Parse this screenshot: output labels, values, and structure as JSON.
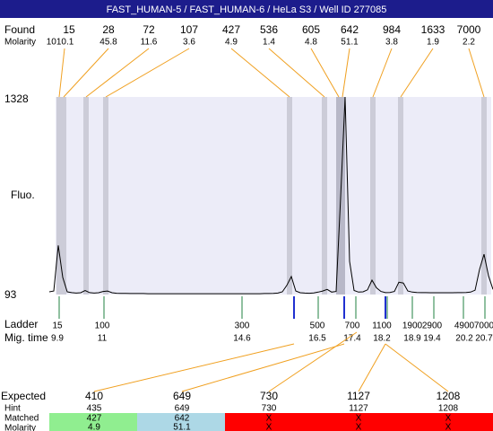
{
  "title": "FAST_HUMAN-5 / FAST_HUMAN-6 / HeLa S3 / Well ID 277085",
  "chart_data": {
    "type": "line",
    "y_label": "Fluo.",
    "ylim": [
      93,
      1328
    ],
    "yticks": [
      93,
      1328
    ],
    "color": "#000000",
    "values": [
      110,
      115,
      400,
      200,
      110,
      105,
      102,
      104,
      118,
      105,
      102,
      104,
      112,
      115,
      104,
      101,
      100,
      100,
      99,
      99,
      99,
      99,
      98,
      98,
      98,
      98,
      98,
      98,
      98,
      98,
      98,
      98,
      98,
      98,
      98,
      98,
      98,
      98,
      98,
      98,
      98,
      98,
      98,
      98,
      98,
      98,
      98,
      98,
      99,
      99,
      100,
      102,
      110,
      150,
      205,
      115,
      104,
      102,
      101,
      103,
      108,
      115,
      125,
      108,
      112,
      700,
      1328,
      300,
      118,
      108,
      110,
      122,
      183,
      135,
      112,
      105,
      106,
      112,
      170,
      165,
      115,
      108,
      106,
      105,
      105,
      104,
      104,
      104,
      104,
      104,
      104,
      105,
      105,
      106,
      108,
      120,
      250,
      345,
      210,
      125
    ]
  },
  "found": {
    "label": "Found",
    "molarity_label": "Molarity",
    "sizes": [
      15,
      28,
      72,
      107,
      427,
      536,
      605,
      642,
      984,
      1633,
      7000
    ],
    "molarity": [
      1010.1,
      45.8,
      11.6,
      3.6,
      4.9,
      1.4,
      4.8,
      51.1,
      3.8,
      1.9,
      2.2
    ]
  },
  "ladder": {
    "label": "Ladder",
    "time_label": "Mig. time",
    "sizes": [
      15,
      100,
      300,
      500,
      700,
      1100,
      1900,
      2900,
      4900,
      7000
    ],
    "times": [
      9.9,
      11,
      14.6,
      16.5,
      17.4,
      18.2,
      18.9,
      19.4,
      20.2,
      20.7
    ]
  },
  "expected": {
    "label": "Expected",
    "hint_label": "Hint",
    "matched_label": "Matched",
    "molarity_label": "Molarity",
    "sizes": [
      410,
      649,
      730,
      1127,
      1208
    ],
    "hints": [
      435,
      649,
      730,
      1127,
      1208
    ],
    "matched": [
      "427",
      "642",
      "X",
      "X",
      "X"
    ],
    "molarity": [
      "4.9",
      "51.1",
      "X",
      "X",
      "X"
    ]
  }
}
